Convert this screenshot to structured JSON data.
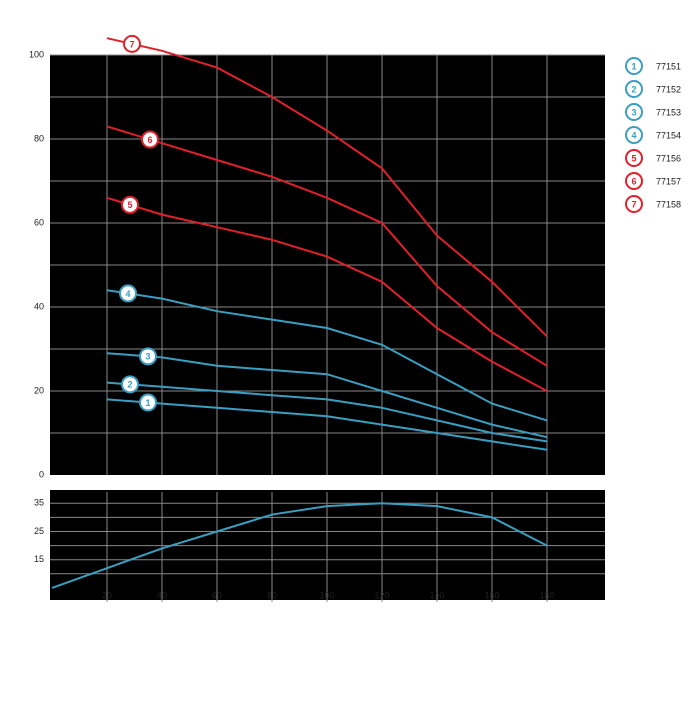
{
  "chart_data": [
    {
      "type": "line",
      "x": [
        20,
        40,
        60,
        80,
        100,
        120,
        140,
        160,
        180
      ],
      "xlim": [
        0,
        200
      ],
      "xticks": [
        20,
        40,
        60,
        80,
        100,
        120,
        140,
        160,
        180
      ],
      "ylim": [
        0,
        100
      ],
      "yticks": [
        0,
        20,
        40,
        60,
        80,
        100
      ],
      "minor_yticks": [
        10,
        30,
        50,
        70,
        90
      ],
      "grid": true,
      "legend": "right",
      "series": [
        {
          "name": "77151",
          "label": "1",
          "color": "#3a9ec0",
          "values": [
            18,
            17,
            16,
            15,
            14,
            12,
            10,
            8,
            6
          ]
        },
        {
          "name": "77152",
          "label": "2",
          "color": "#3a9ec0",
          "values": [
            22,
            21,
            20,
            19,
            18,
            16,
            13,
            10,
            8
          ]
        },
        {
          "name": "77153",
          "label": "3",
          "color": "#3a9ec0",
          "values": [
            29,
            28,
            26,
            25,
            24,
            20,
            16,
            12,
            9
          ]
        },
        {
          "name": "77154",
          "label": "4",
          "color": "#3a9ec0",
          "values": [
            44,
            42,
            39,
            37,
            35,
            31,
            24,
            17,
            13
          ]
        },
        {
          "name": "77156",
          "label": "5",
          "color": "#e0202a",
          "values": [
            66,
            62,
            59,
            56,
            52,
            46,
            35,
            27,
            20
          ]
        },
        {
          "name": "77157",
          "label": "6",
          "color": "#e0202a",
          "values": [
            83,
            79,
            75,
            71,
            66,
            60,
            45,
            34,
            26
          ]
        },
        {
          "name": "77158",
          "label": "7",
          "color": "#e0202a",
          "values": [
            104,
            101,
            97,
            90,
            82,
            73,
            57,
            46,
            33
          ]
        }
      ]
    },
    {
      "type": "line",
      "x": [
        0,
        20,
        40,
        60,
        80,
        100,
        120,
        140,
        160,
        180
      ],
      "xlim": [
        0,
        200
      ],
      "xticks": [
        20,
        40,
        60,
        80,
        100,
        120,
        140,
        160,
        180
      ],
      "ylim": [
        0,
        39
      ],
      "yticks": [
        15,
        25,
        35
      ],
      "minor_yticks": [
        10,
        20,
        30
      ],
      "grid": true,
      "series": [
        {
          "color": "#3a9ec0",
          "values": [
            5,
            12,
            19,
            25,
            31,
            34,
            35,
            34,
            30,
            20
          ]
        }
      ]
    }
  ]
}
